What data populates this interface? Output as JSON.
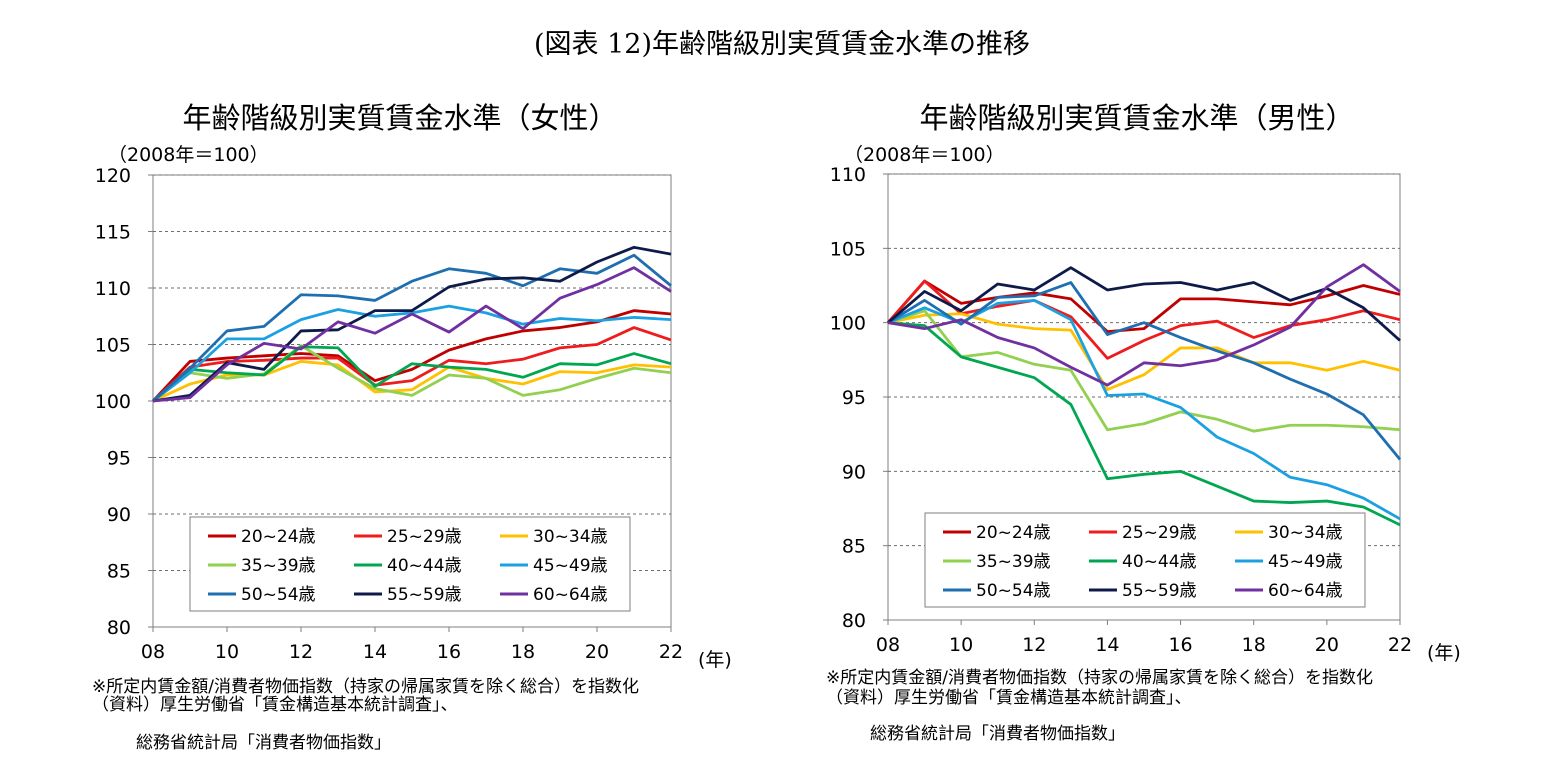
{
  "page_title": "(図表 12)年齢階級別実質賃金水準の推移",
  "chart_data": [
    {
      "type": "line",
      "title": "年齢階級別実質賃金水準（女性）",
      "unit_label": "（2008年＝100）",
      "x_unit": "(年)",
      "x": [
        8,
        9,
        10,
        11,
        12,
        13,
        14,
        15,
        16,
        17,
        18,
        19,
        20,
        21,
        22
      ],
      "x_tick_labels": [
        "08",
        "10",
        "12",
        "14",
        "16",
        "18",
        "20",
        "22"
      ],
      "x_ticks": [
        8,
        10,
        12,
        14,
        16,
        18,
        20,
        22
      ],
      "ylim": [
        80,
        120
      ],
      "y_ticks": [
        80,
        85,
        90,
        95,
        100,
        105,
        110,
        115,
        120
      ],
      "grid": "dashed-horizontal",
      "legend_position": "bottom-inside",
      "series": [
        {
          "name": "20~24歳",
          "color": "#c00000",
          "values": [
            100,
            103.5,
            103.8,
            104.0,
            104.2,
            104.0,
            101.8,
            102.8,
            104.5,
            105.5,
            106.2,
            106.5,
            107.0,
            108.0,
            107.7
          ]
        },
        {
          "name": "25~29歳",
          "color": "#ee1c1c",
          "values": [
            100,
            103.0,
            103.5,
            103.6,
            103.8,
            103.8,
            101.4,
            101.8,
            103.6,
            103.3,
            103.7,
            104.7,
            105.0,
            106.5,
            105.4
          ]
        },
        {
          "name": "30~34歳",
          "color": "#ffc000",
          "values": [
            100,
            101.5,
            102.3,
            102.3,
            103.5,
            103.2,
            100.8,
            101.0,
            103.0,
            102.0,
            101.5,
            102.6,
            102.5,
            103.2,
            103.0
          ]
        },
        {
          "name": "35~39歳",
          "color": "#92d050",
          "values": [
            100,
            102.5,
            102.0,
            102.4,
            104.9,
            102.9,
            101.1,
            100.5,
            102.3,
            102.0,
            100.5,
            101.0,
            102.0,
            102.9,
            102.5
          ]
        },
        {
          "name": "40~44歳",
          "color": "#00a650",
          "values": [
            100,
            102.8,
            102.5,
            102.3,
            104.8,
            104.7,
            101.3,
            103.3,
            103.0,
            102.8,
            102.1,
            103.3,
            103.2,
            104.2,
            103.3
          ]
        },
        {
          "name": "45~49歳",
          "color": "#1ba1e2",
          "values": [
            100,
            102.5,
            105.5,
            105.5,
            107.2,
            108.1,
            107.5,
            107.8,
            108.4,
            107.8,
            106.8,
            107.3,
            107.1,
            107.4,
            107.2
          ]
        },
        {
          "name": "50~54歳",
          "color": "#1f6fb0",
          "values": [
            100,
            102.9,
            106.2,
            106.6,
            109.4,
            109.3,
            108.9,
            110.6,
            111.7,
            111.3,
            110.2,
            111.7,
            111.3,
            112.9,
            110.2
          ]
        },
        {
          "name": "55~59歳",
          "color": "#0d1b4a",
          "values": [
            100,
            100.5,
            103.4,
            102.8,
            106.2,
            106.3,
            108.0,
            108.0,
            110.1,
            110.8,
            110.9,
            110.6,
            112.3,
            113.6,
            113.0
          ]
        },
        {
          "name": "60~64歳",
          "color": "#7030a0",
          "values": [
            100,
            100.3,
            103.2,
            105.1,
            104.6,
            107.0,
            106.0,
            107.7,
            106.1,
            108.4,
            106.4,
            109.1,
            110.3,
            111.8,
            109.7
          ]
        }
      ],
      "notes": [
        "※所定内賃金額/消費者物価指数（持家の帰属家賃を除く総合）を指数化",
        "（資料）厚生労働省「賃金構造基本統計調査」、",
        "総務省統計局「消費者物価指数」"
      ]
    },
    {
      "type": "line",
      "title": "年齢階級別実質賃金水準（男性）",
      "unit_label": "（2008年＝100）",
      "x_unit": "(年)",
      "x": [
        8,
        9,
        10,
        11,
        12,
        13,
        14,
        15,
        16,
        17,
        18,
        19,
        20,
        21,
        22
      ],
      "x_tick_labels": [
        "08",
        "10",
        "12",
        "14",
        "16",
        "18",
        "20",
        "22"
      ],
      "x_ticks": [
        8,
        10,
        12,
        14,
        16,
        18,
        20,
        22
      ],
      "ylim": [
        80,
        110
      ],
      "y_ticks": [
        80,
        85,
        90,
        95,
        100,
        105,
        110
      ],
      "grid": "dashed-horizontal",
      "legend_position": "bottom-inside",
      "series": [
        {
          "name": "20~24歳",
          "color": "#c00000",
          "values": [
            100,
            102.8,
            101.3,
            101.7,
            102.0,
            101.6,
            99.4,
            99.6,
            101.6,
            101.6,
            101.4,
            101.2,
            101.8,
            102.5,
            101.9
          ]
        },
        {
          "name": "25~29歳",
          "color": "#ee1c1c",
          "values": [
            100,
            102.8,
            100.6,
            101.1,
            101.5,
            100.4,
            97.6,
            98.8,
            99.8,
            100.1,
            99.0,
            99.8,
            100.2,
            100.8,
            100.2
          ]
        },
        {
          "name": "30~34歳",
          "color": "#ffc000",
          "values": [
            100,
            100.5,
            100.6,
            99.9,
            99.6,
            99.5,
            95.5,
            96.5,
            98.3,
            98.3,
            97.3,
            97.3,
            96.8,
            97.4,
            96.8
          ]
        },
        {
          "name": "35~39歳",
          "color": "#92d050",
          "values": [
            100,
            100.8,
            97.7,
            98.0,
            97.2,
            96.8,
            92.8,
            93.2,
            94.0,
            93.5,
            92.7,
            93.1,
            93.1,
            93.0,
            92.8
          ]
        },
        {
          "name": "40~44歳",
          "color": "#00a650",
          "values": [
            100,
            99.8,
            97.7,
            97.0,
            96.3,
            94.5,
            89.5,
            89.8,
            90.0,
            89.0,
            88.0,
            87.9,
            88.0,
            87.6,
            86.4
          ]
        },
        {
          "name": "45~49歳",
          "color": "#1ba1e2",
          "values": [
            100,
            101.0,
            100.0,
            101.3,
            101.5,
            100.2,
            95.1,
            95.2,
            94.3,
            92.3,
            91.2,
            89.6,
            89.1,
            88.2,
            86.8
          ]
        },
        {
          "name": "50~54歳",
          "color": "#1f6fb0",
          "values": [
            100,
            101.5,
            99.9,
            101.7,
            101.8,
            102.7,
            99.2,
            100.0,
            99.0,
            98.1,
            97.3,
            96.2,
            95.2,
            93.8,
            90.8
          ]
        },
        {
          "name": "55~59歳",
          "color": "#0d1b4a",
          "values": [
            100,
            102.1,
            100.8,
            102.6,
            102.2,
            103.7,
            102.2,
            102.6,
            102.7,
            102.2,
            102.7,
            101.5,
            102.3,
            101.0,
            98.8
          ]
        },
        {
          "name": "60~64歳",
          "color": "#7030a0",
          "values": [
            100,
            99.6,
            100.2,
            99.0,
            98.3,
            97.0,
            95.8,
            97.3,
            97.1,
            97.5,
            98.5,
            99.7,
            102.4,
            103.9,
            102.1
          ]
        }
      ],
      "notes": [
        "※所定内賃金額/消費者物価指数（持家の帰属家賃を除く総合）を指数化",
        "（資料）厚生労働省「賃金構造基本統計調査」、",
        "総務省統計局「消費者物価指数」"
      ]
    }
  ]
}
